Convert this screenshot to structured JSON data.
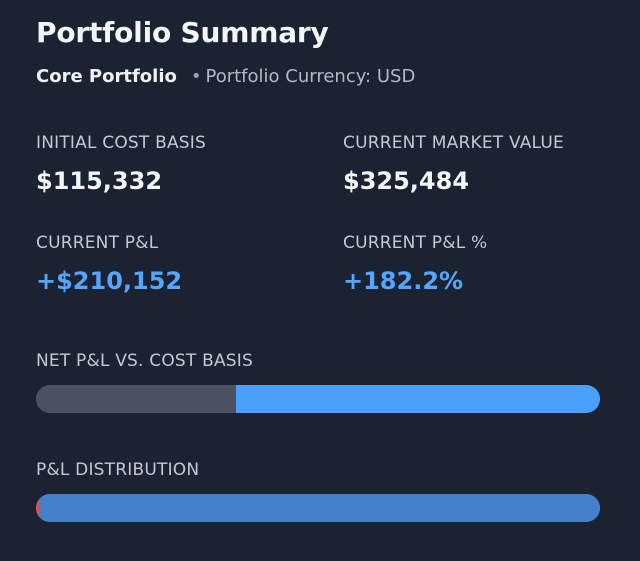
{
  "header": {
    "title": "Portfolio Summary",
    "portfolio_name": "Core Portfolio",
    "separator": "•",
    "currency_text": "Portfolio Currency: USD"
  },
  "metrics": [
    {
      "label": "INITIAL COST BASIS",
      "value": "$115,332",
      "positive": false
    },
    {
      "label": "CURRENT MARKET VALUE",
      "value": "$325,484",
      "positive": false
    },
    {
      "label": "CURRENT P&L",
      "value": "+$210,152",
      "positive": true
    },
    {
      "label": "CURRENT P&L %",
      "value": "+182.2%",
      "positive": true
    }
  ],
  "net_pl_bar": {
    "label": "NET P&L VS. COST BASIS",
    "cost_basis_fraction": 0.354,
    "pl_fraction": 0.646,
    "colors": {
      "cost_basis": "#4a5261",
      "pl": "#4aa0ff"
    }
  },
  "distribution_bar": {
    "label": "P&L DISTRIBUTION",
    "negative_fraction": 0.005,
    "positive_fraction": 0.995,
    "colors": {
      "negative": "#d9534f",
      "positive": "#4580cc"
    }
  },
  "colors": {
    "background": "#1b2231",
    "positive_text": "#54a6ff"
  }
}
